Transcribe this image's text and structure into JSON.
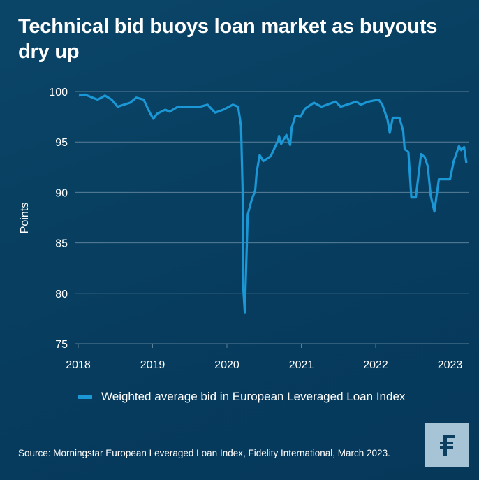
{
  "title": "Technical bid buoys loan market as buyouts dry up",
  "source": "Source: Morningstar European Leveraged Loan Index, Fidelity International, March 2023.",
  "logo": {
    "text": "F",
    "icon": "fidelity-logo"
  },
  "colors": {
    "line": "#1a97d4",
    "background": "#073c5e",
    "grid": "#5a7f98",
    "logo_bg": "#a6c4d6"
  },
  "chart_data": {
    "type": "line",
    "ylabel": "Points",
    "xlabel": "",
    "ylim": [
      75,
      100
    ],
    "xlim": [
      2018,
      2023.27
    ],
    "yticks": [
      "100",
      "95",
      "90",
      "85",
      "80",
      "75"
    ],
    "xticks": [
      "2018",
      "2019",
      "2020",
      "2021",
      "2022",
      "2023"
    ],
    "grid": "horizontal",
    "legend_placement": "bottom",
    "series": [
      {
        "name": "Weighted average bid in European Leveraged Loan Index",
        "points": [
          [
            2018.01,
            99.6
          ],
          [
            2018.09,
            99.7
          ],
          [
            2018.26,
            99.2
          ],
          [
            2018.36,
            99.6
          ],
          [
            2018.45,
            99.2
          ],
          [
            2018.53,
            98.5
          ],
          [
            2018.7,
            98.9
          ],
          [
            2018.78,
            99.4
          ],
          [
            2018.88,
            99.2
          ],
          [
            2018.97,
            97.8
          ],
          [
            2019.01,
            97.3
          ],
          [
            2019.06,
            97.8
          ],
          [
            2019.17,
            98.2
          ],
          [
            2019.23,
            98.0
          ],
          [
            2019.34,
            98.5
          ],
          [
            2019.46,
            98.5
          ],
          [
            2019.64,
            98.5
          ],
          [
            2019.74,
            98.7
          ],
          [
            2019.84,
            97.9
          ],
          [
            2019.95,
            98.2
          ],
          [
            2020.08,
            98.7
          ],
          [
            2020.15,
            98.5
          ],
          [
            2020.19,
            96.6
          ],
          [
            2020.21,
            90.4
          ],
          [
            2020.22,
            80.5
          ],
          [
            2020.24,
            78.1
          ],
          [
            2020.26,
            83.0
          ],
          [
            2020.28,
            87.8
          ],
          [
            2020.33,
            89.2
          ],
          [
            2020.38,
            90.2
          ],
          [
            2020.4,
            92.0
          ],
          [
            2020.44,
            93.7
          ],
          [
            2020.49,
            93.1
          ],
          [
            2020.59,
            93.6
          ],
          [
            2020.69,
            95.2
          ],
          [
            2020.7,
            95.6
          ],
          [
            2020.73,
            94.8
          ],
          [
            2020.8,
            95.7
          ],
          [
            2020.85,
            94.7
          ],
          [
            2020.87,
            96.4
          ],
          [
            2020.92,
            97.6
          ],
          [
            2020.99,
            97.5
          ],
          [
            2021.05,
            98.3
          ],
          [
            2021.17,
            98.9
          ],
          [
            2021.27,
            98.5
          ],
          [
            2021.46,
            99.0
          ],
          [
            2021.53,
            98.5
          ],
          [
            2021.74,
            99.0
          ],
          [
            2021.8,
            98.7
          ],
          [
            2021.9,
            99.0
          ],
          [
            2022.04,
            99.2
          ],
          [
            2022.09,
            98.7
          ],
          [
            2022.16,
            97.2
          ],
          [
            2022.19,
            95.9
          ],
          [
            2022.23,
            97.4
          ],
          [
            2022.32,
            97.4
          ],
          [
            2022.37,
            96.1
          ],
          [
            2022.39,
            94.3
          ],
          [
            2022.44,
            94.0
          ],
          [
            2022.48,
            89.5
          ],
          [
            2022.54,
            89.5
          ],
          [
            2022.61,
            93.8
          ],
          [
            2022.66,
            93.5
          ],
          [
            2022.7,
            92.6
          ],
          [
            2022.74,
            89.7
          ],
          [
            2022.79,
            88.1
          ],
          [
            2022.85,
            91.3
          ],
          [
            2022.89,
            91.3
          ],
          [
            2023.0,
            91.3
          ],
          [
            2023.05,
            93.1
          ],
          [
            2023.12,
            94.6
          ],
          [
            2023.15,
            94.2
          ],
          [
            2023.19,
            94.5
          ],
          [
            2023.22,
            92.9
          ]
        ]
      }
    ]
  }
}
